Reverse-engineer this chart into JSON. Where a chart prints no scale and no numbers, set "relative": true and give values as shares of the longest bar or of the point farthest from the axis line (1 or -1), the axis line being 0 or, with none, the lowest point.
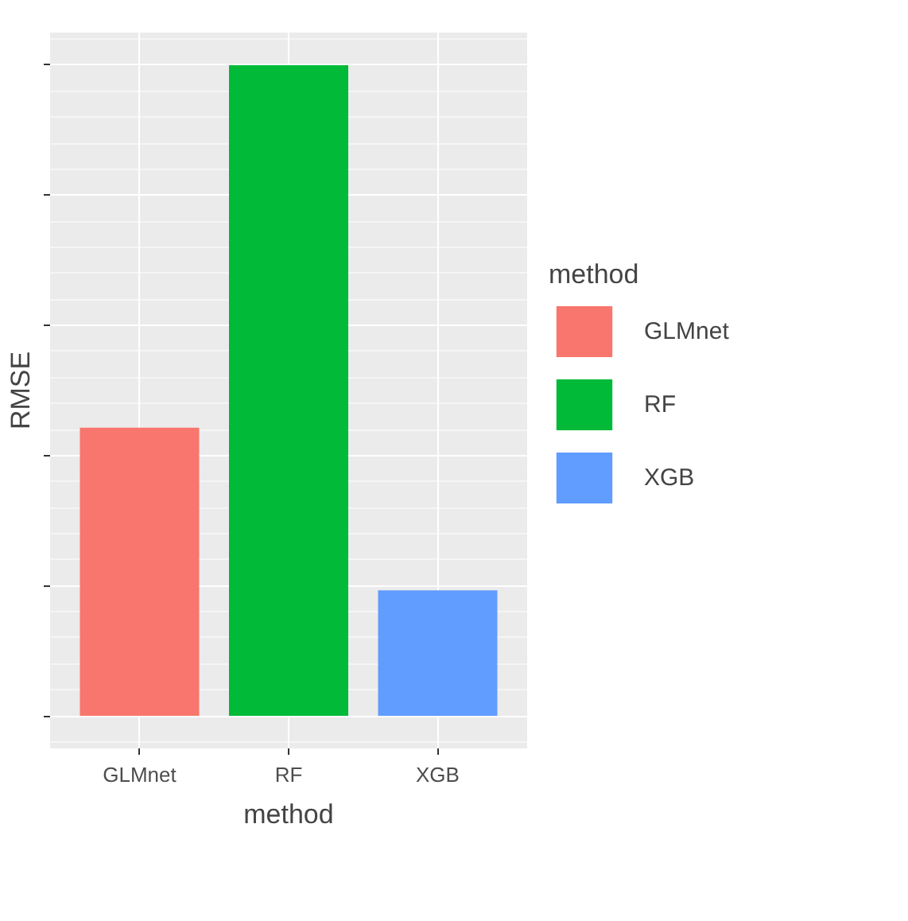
{
  "chart_data": {
    "type": "bar",
    "xlabel": "method",
    "ylabel": "RMSE",
    "legend_title": "method",
    "categories": [
      "GLMnet",
      "RF",
      "XGB"
    ],
    "series": [
      {
        "name": "GLMnet",
        "color": "#f8766d",
        "values": [
          0.443,
          null,
          null
        ]
      },
      {
        "name": "RF",
        "color": "#00ba38",
        "values": [
          null,
          1,
          null
        ]
      },
      {
        "name": "XGB",
        "color": "#619cff",
        "values": [
          null,
          null,
          0.193
        ]
      }
    ],
    "relative": true,
    "grid": true,
    "legend": "right"
  }
}
